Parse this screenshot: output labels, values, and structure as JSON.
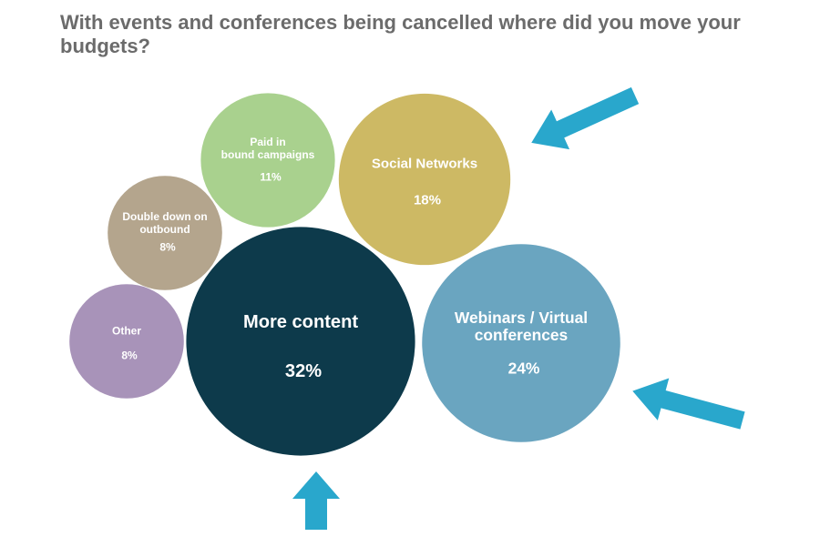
{
  "chart_data": {
    "type": "bubble",
    "title": "With events and conferences being cancelled where did you move your budgets?",
    "categories": [
      "More content",
      "Webinars / Virtual\nconferences",
      "Social Networks",
      "Paid in\nbound campaigns",
      "Double down on\noutbound",
      "Other"
    ],
    "values": [
      32,
      24,
      18,
      11,
      8,
      8
    ],
    "value_labels": [
      "32%",
      "24%",
      "18%",
      "11%",
      "8%",
      "8%"
    ],
    "colors": [
      "#0d3a4b",
      "#6aa5c0",
      "#cdb964",
      "#a9d18e",
      "#b4a58d",
      "#a893b9"
    ]
  }
}
